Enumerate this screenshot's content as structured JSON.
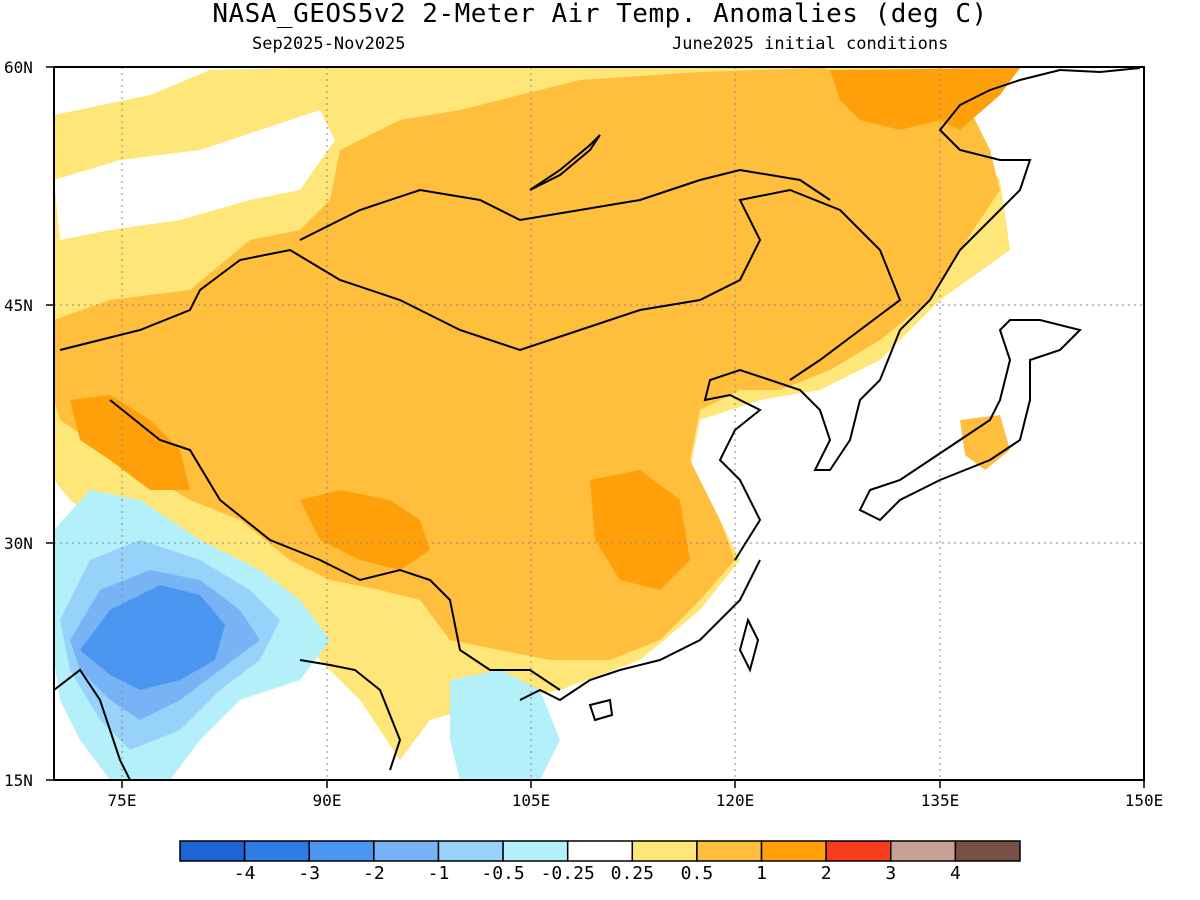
{
  "header": {
    "title": "NASA_GEOS5v2 2-Meter Air Temp. Anomalies (deg C)",
    "subtitle_left": "Sep2025-Nov2025",
    "subtitle_right": "June2025 initial conditions"
  },
  "axes": {
    "lat_labels": [
      "60N",
      "45N",
      "30N",
      "15N"
    ],
    "lon_labels": [
      "75E",
      "90E",
      "105E",
      "120E",
      "135E",
      "150E"
    ],
    "lat_range": [
      15,
      60
    ],
    "lon_range": [
      70,
      150
    ],
    "grid": "dotted"
  },
  "legend": {
    "labels": [
      "-4",
      "-3",
      "-2",
      "-1",
      "-0.5",
      "-0.25",
      "0.25",
      "0.5",
      "1",
      "2",
      "3",
      "4"
    ],
    "colors": [
      "#1e64d2",
      "#2e7de6",
      "#4b96f0",
      "#78b4f5",
      "#96d2fa",
      "#b4f0fa",
      "#ffffff",
      "#ffe678",
      "#ffbe3c",
      "#ffa00a",
      "#fa3c1e",
      "#c8a096",
      "#785046"
    ]
  },
  "map": {
    "variable": "2-meter air temperature anomaly",
    "units": "deg C"
  }
}
